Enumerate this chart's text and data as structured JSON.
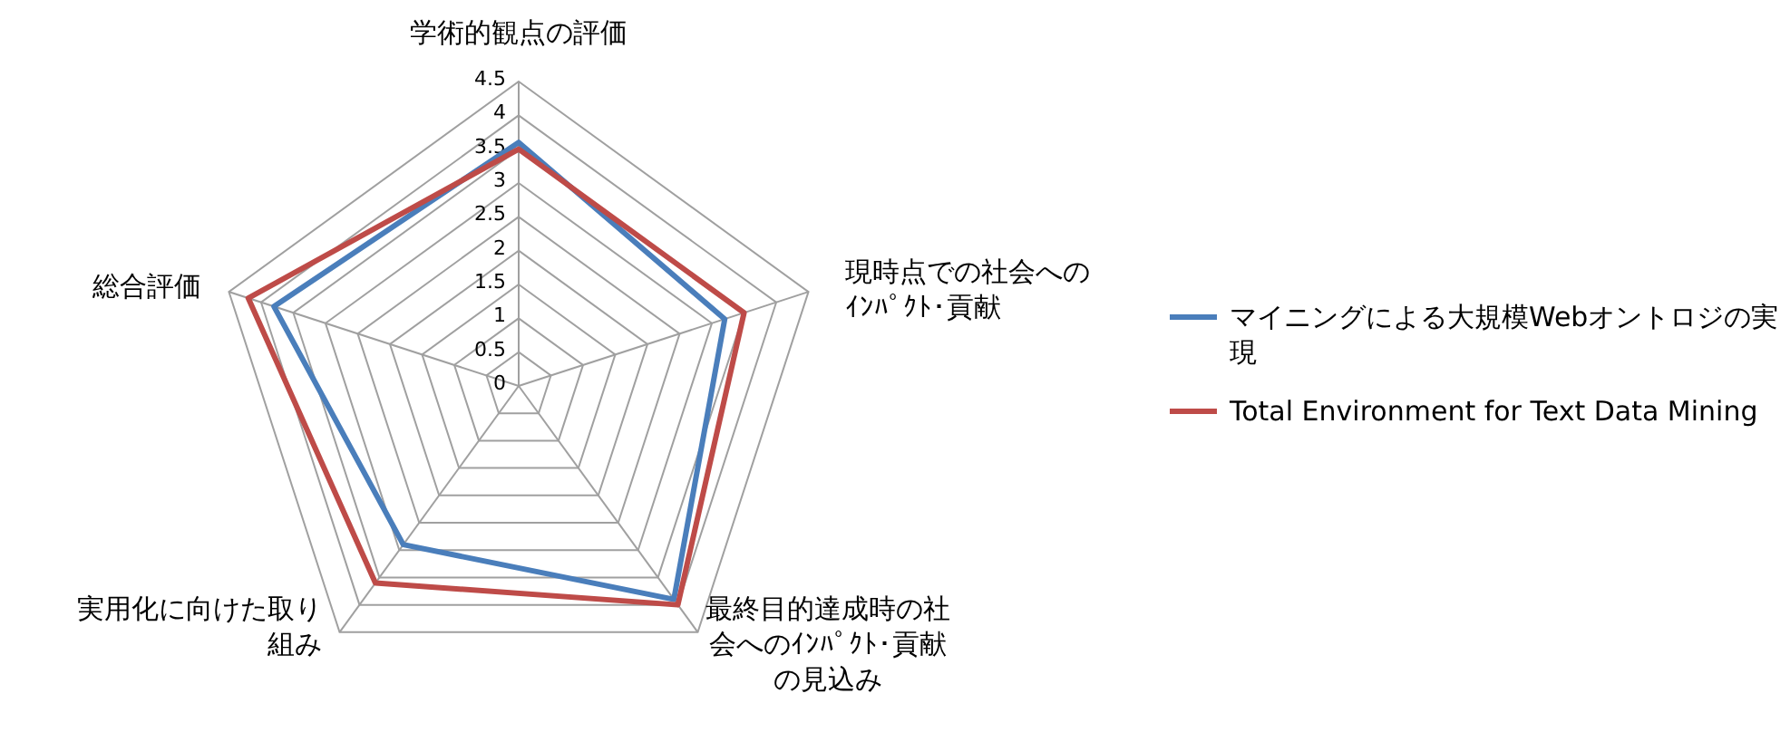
{
  "chart_data": {
    "type": "radar",
    "categories": [
      "学術的観点の評価",
      "現時点での社会へのｲﾝﾊﾟｸﾄ･貢献",
      "最終目的達成時の社会へのｲﾝﾊﾟｸﾄ･貢献の見込み",
      "実用化に向けた取り組み",
      "総合評価"
    ],
    "series": [
      {
        "name": "マイニングによる大規模Webオントロジの実現",
        "color": "#4a7ebb",
        "values": [
          3.6,
          3.2,
          3.9,
          2.9,
          3.8
        ]
      },
      {
        "name": "Total Environment for Text Data Mining",
        "color": "#be4b48",
        "values": [
          3.5,
          3.5,
          4.0,
          3.6,
          4.2
        ]
      }
    ],
    "ylim": [
      0,
      4.5
    ],
    "yticks": [
      0,
      0.5,
      1,
      1.5,
      2,
      2.5,
      3,
      3.5,
      4,
      4.5
    ],
    "grid": true,
    "legend": "right"
  }
}
